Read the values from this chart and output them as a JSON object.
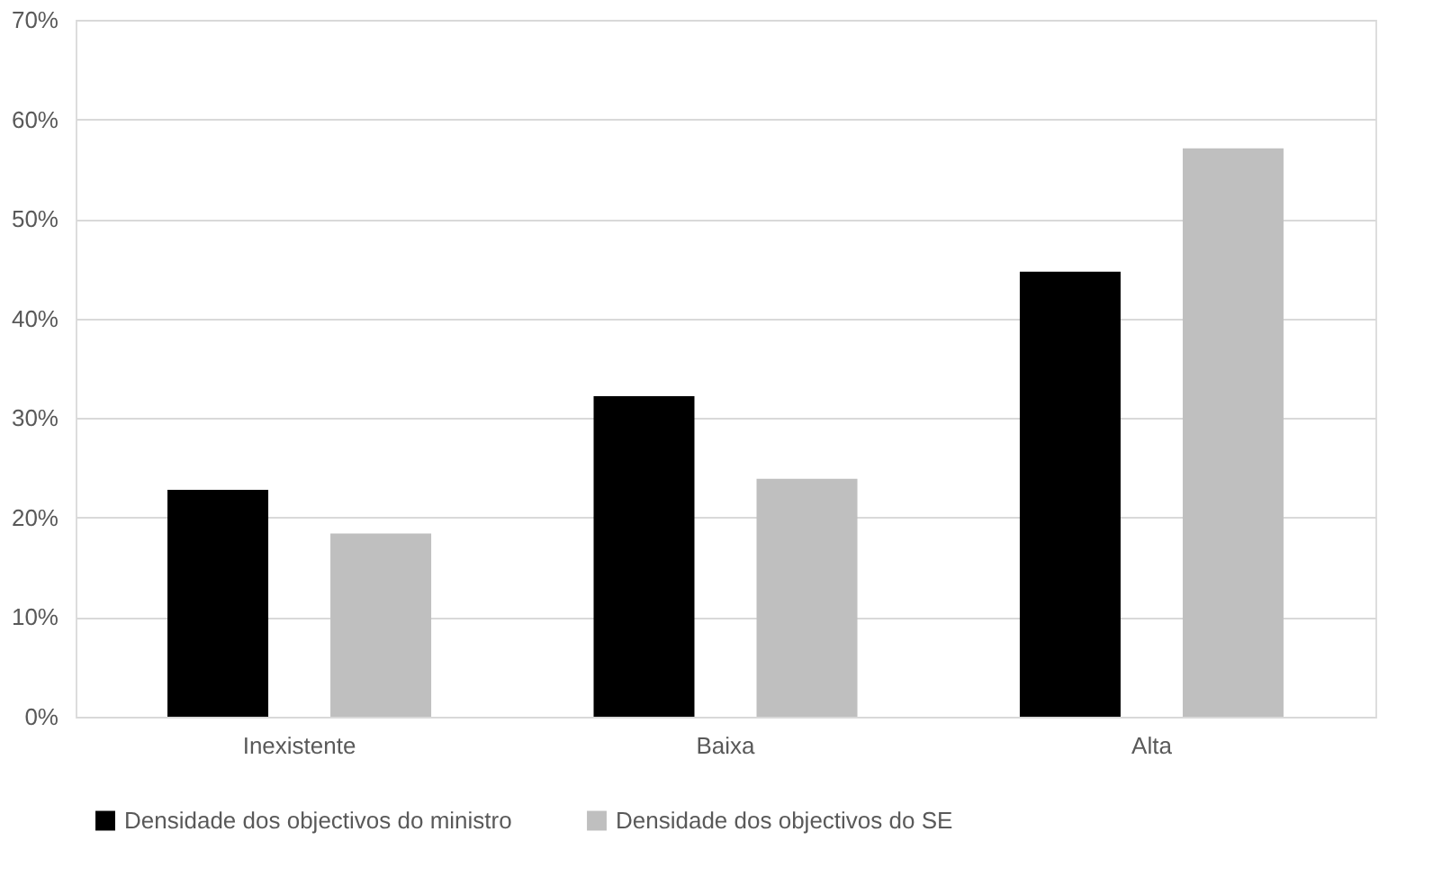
{
  "chart_data": {
    "type": "bar",
    "categories": [
      "Inexistente",
      "Baixa",
      "Alta"
    ],
    "series": [
      {
        "name": "Densidade dos objectivos do ministro",
        "color": "#000000",
        "values": [
          22.8,
          32.2,
          44.7
        ]
      },
      {
        "name": "Densidade dos objectivos do SE",
        "color": "#bfbfbf",
        "values": [
          18.4,
          23.9,
          57.1
        ]
      }
    ],
    "ylim": [
      0,
      70
    ],
    "yticks": [
      {
        "value": 0,
        "label": "0%"
      },
      {
        "value": 10,
        "label": "10%"
      },
      {
        "value": 20,
        "label": "20%"
      },
      {
        "value": 30,
        "label": "30%"
      },
      {
        "value": 40,
        "label": "40%"
      },
      {
        "value": 50,
        "label": "50%"
      },
      {
        "value": 60,
        "label": "60%"
      },
      {
        "value": 70,
        "label": "70%"
      }
    ],
    "grid": "y",
    "legend": "bottom"
  }
}
